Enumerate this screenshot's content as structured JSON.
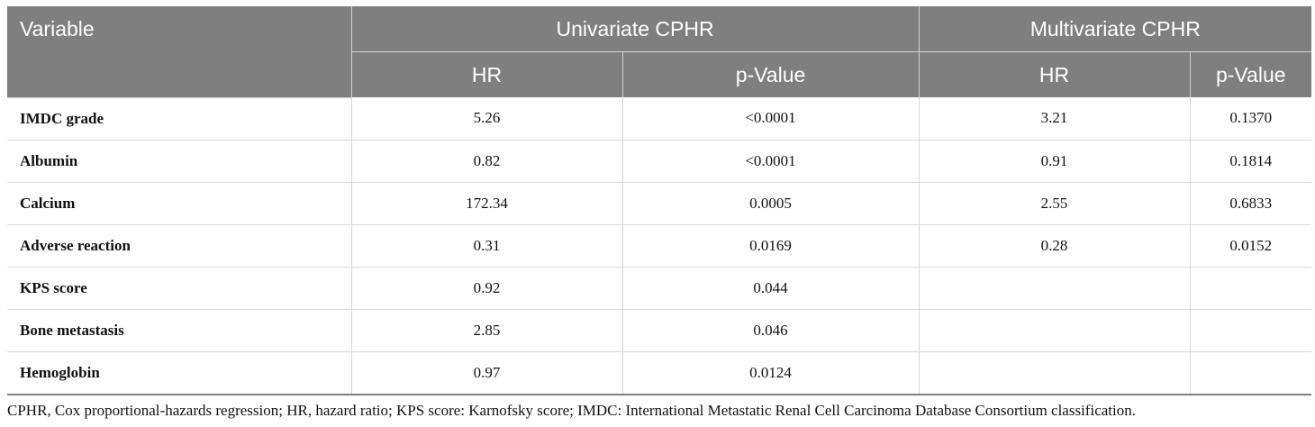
{
  "table": {
    "header": {
      "variable": "Variable",
      "univariate": "Univariate CPHR",
      "multivariate": "Multivariate CPHR",
      "hr": "HR",
      "pvalue": "p-Value"
    },
    "rows": [
      {
        "variable": "IMDC grade",
        "uni_hr": "5.26",
        "uni_p": "<0.0001",
        "multi_hr": "3.21",
        "multi_p": "0.1370"
      },
      {
        "variable": "Albumin",
        "uni_hr": "0.82",
        "uni_p": "<0.0001",
        "multi_hr": "0.91",
        "multi_p": "0.1814"
      },
      {
        "variable": "Calcium",
        "uni_hr": "172.34",
        "uni_p": "0.0005",
        "multi_hr": "2.55",
        "multi_p": "0.6833"
      },
      {
        "variable": "Adverse reaction",
        "uni_hr": "0.31",
        "uni_p": "0.0169",
        "multi_hr": "0.28",
        "multi_p": "0.0152"
      },
      {
        "variable": "KPS score",
        "uni_hr": "0.92",
        "uni_p": "0.044",
        "multi_hr": "",
        "multi_p": ""
      },
      {
        "variable": "Bone metastasis",
        "uni_hr": "2.85",
        "uni_p": "0.046",
        "multi_hr": "",
        "multi_p": ""
      },
      {
        "variable": "Hemoglobin",
        "uni_hr": "0.97",
        "uni_p": "0.0124",
        "multi_hr": "",
        "multi_p": ""
      }
    ]
  },
  "footnote": "CPHR, Cox proportional-hazards regression; HR, hazard ratio; KPS score: Karnofsky score; IMDC: International Metastatic Renal Cell Carcinoma Database Consortium classification."
}
